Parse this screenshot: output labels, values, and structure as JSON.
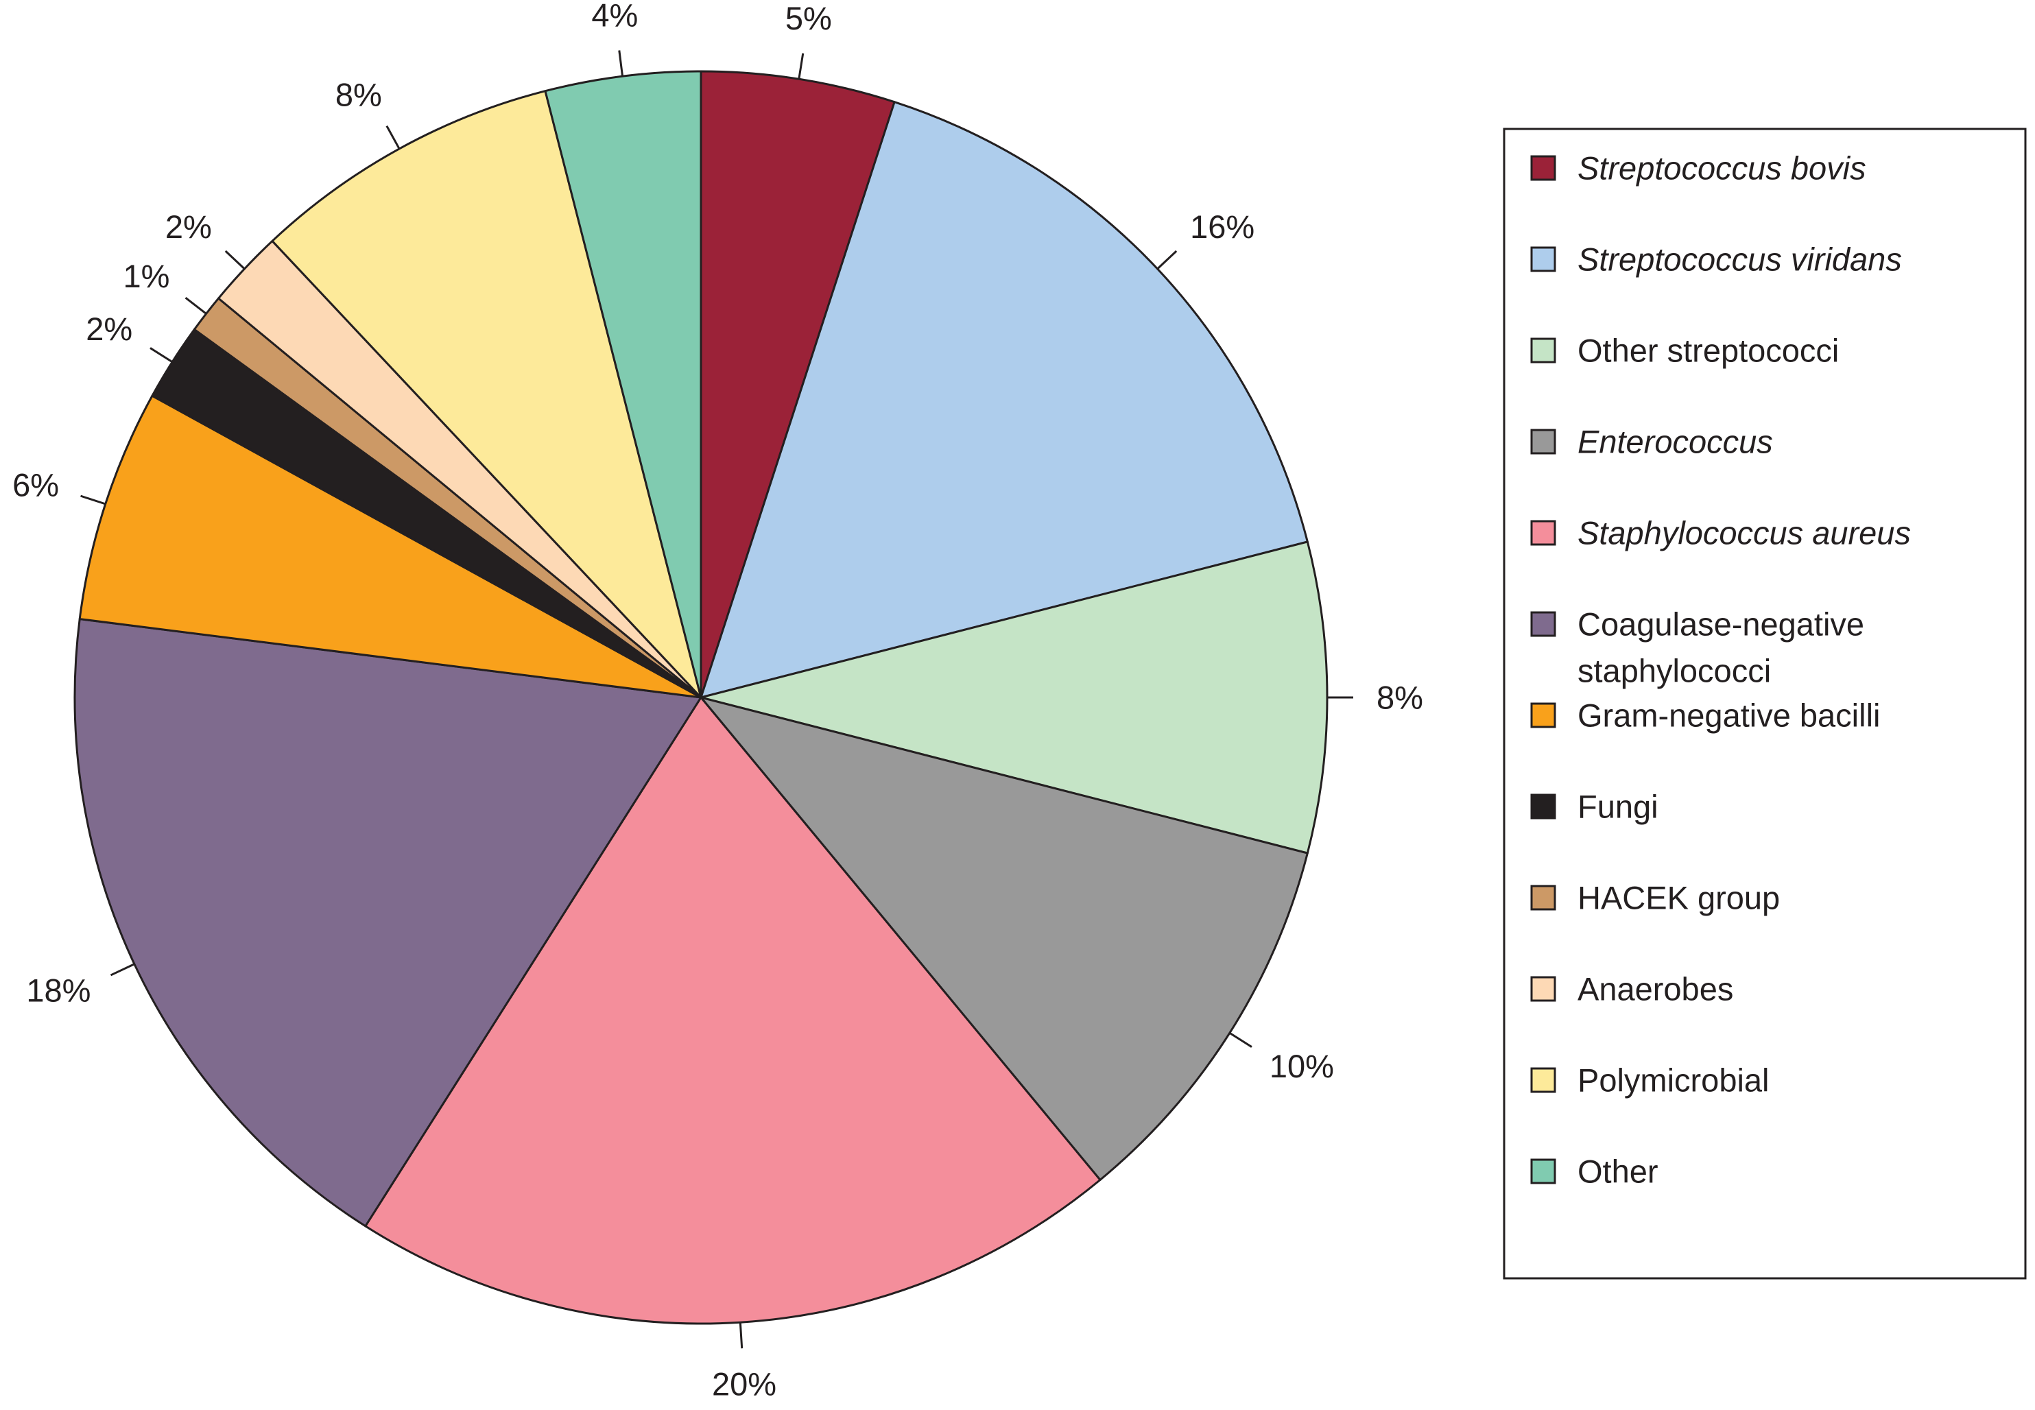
{
  "chart_data": {
    "type": "pie",
    "title": "",
    "start_angle_deg": 0,
    "direction": "clockwise",
    "slices": [
      {
        "label": "Streptococcus bovis",
        "value": 5,
        "value_label": "5%",
        "color": "#9b2238",
        "italic": true
      },
      {
        "label": "Streptococcus viridans",
        "value": 16,
        "value_label": "16%",
        "color": "#aecdec",
        "italic": true
      },
      {
        "label": "Other streptococci",
        "value": 8,
        "value_label": "8%",
        "color": "#c5e4c6",
        "italic": false
      },
      {
        "label": "Enterococcus",
        "value": 10,
        "value_label": "10%",
        "color": "#999999",
        "italic": true
      },
      {
        "label": "Staphylococcus aureus",
        "value": 20,
        "value_label": "20%",
        "color": "#f48e9b",
        "italic": true
      },
      {
        "label": [
          "Coagulase-negative",
          "staphylococci"
        ],
        "value": 18,
        "value_label": "18%",
        "color": "#7f6b8e",
        "italic": false
      },
      {
        "label": "Gram-negative bacilli",
        "value": 6,
        "value_label": "6%",
        "color": "#f9a11b",
        "italic": false
      },
      {
        "label": "Fungi",
        "value": 2,
        "value_label": "2%",
        "color": "#231f20",
        "italic": false
      },
      {
        "label": "HACEK group",
        "value": 1,
        "value_label": "1%",
        "color": "#cc9966",
        "italic": false
      },
      {
        "label": "Anaerobes",
        "value": 2,
        "value_label": "2%",
        "color": "#fdd9b5",
        "italic": false
      },
      {
        "label": "Polymicrobial",
        "value": 8,
        "value_label": "8%",
        "color": "#fdea9a",
        "italic": false
      },
      {
        "label": "Other",
        "value": 4,
        "value_label": "4%",
        "color": "#80cbb0",
        "italic": false
      }
    ],
    "legend": {
      "position": "right",
      "border": true
    }
  }
}
